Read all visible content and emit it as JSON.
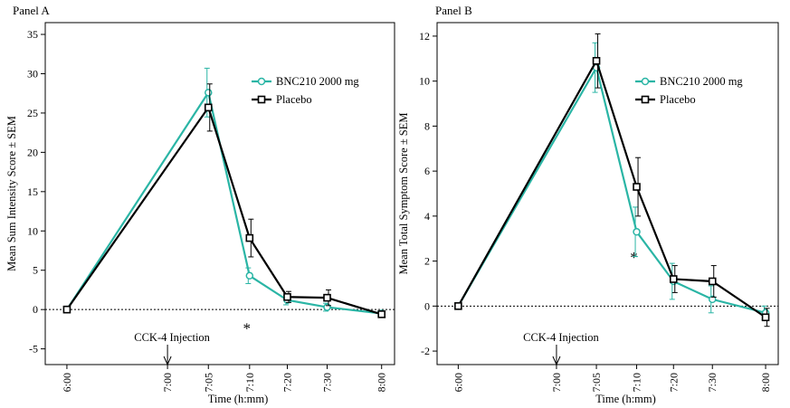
{
  "chart_data": [
    {
      "type": "line",
      "panel_label": "Panel A",
      "xlabel": "Time (h:mm)",
      "ylabel": "Mean Sum Intensity Score ± SEM",
      "ylim": [
        -7,
        36.5
      ],
      "yticks": [
        -5,
        0,
        5,
        10,
        15,
        20,
        25,
        30,
        35
      ],
      "xlim": [
        -4,
        299
      ],
      "x_ticks": [
        {
          "label": "6:00",
          "minutes": 0
        },
        {
          "label": "7:00",
          "minutes": 60
        },
        {
          "label": "7:05",
          "minutes": 65
        },
        {
          "label": "7:10",
          "minutes": 70
        },
        {
          "label": "7:20",
          "minutes": 80
        },
        {
          "label": "7:30",
          "minutes": 90
        },
        {
          "label": "8:00",
          "minutes": 120
        }
      ],
      "legend_position": "top-right",
      "series": [
        {
          "name": "BNC210 2000 mg",
          "color": "#2ab5a5",
          "marker": "circle",
          "points": [
            {
              "x": "6:00",
              "y": 0,
              "err": 0
            },
            {
              "x": "7:05",
              "y": 27.6,
              "err": 3.1
            },
            {
              "x": "7:10",
              "y": 4.3,
              "err": 1.0
            },
            {
              "x": "7:20",
              "y": 1.2,
              "err": 0.6
            },
            {
              "x": "7:30",
              "y": 0.3,
              "err": 0.5
            },
            {
              "x": "8:00",
              "y": -0.5,
              "err": 0.3
            }
          ]
        },
        {
          "name": "Placebo",
          "color": "#000000",
          "marker": "square",
          "points": [
            {
              "x": "6:00",
              "y": 0,
              "err": 0
            },
            {
              "x": "7:05",
              "y": 25.7,
              "err": 3.0
            },
            {
              "x": "7:10",
              "y": 9.1,
              "err": 2.4
            },
            {
              "x": "7:20",
              "y": 1.6,
              "err": 0.7
            },
            {
              "x": "7:30",
              "y": 1.5,
              "err": 1.0
            },
            {
              "x": "8:00",
              "y": -0.6,
              "err": 0.4
            }
          ]
        }
      ],
      "annotations": {
        "injection_label": "CCK-4 Injection",
        "injection_at": "7:00",
        "significance_mark": "*",
        "significance_at": "7:10",
        "significance_y": -2.0
      }
    },
    {
      "type": "line",
      "panel_label": "Panel B",
      "xlabel": "Time (h:mm)",
      "ylabel": "Mean Total Symptom Score ± SEM",
      "ylim": [
        -2.6,
        12.6
      ],
      "yticks": [
        -2,
        0,
        2,
        4,
        6,
        8,
        10,
        12
      ],
      "xlim": [
        -4,
        299
      ],
      "x_ticks": [
        {
          "label": "6:00",
          "minutes": 0
        },
        {
          "label": "7:00",
          "minutes": 60
        },
        {
          "label": "7:05",
          "minutes": 65
        },
        {
          "label": "7:10",
          "minutes": 70
        },
        {
          "label": "7:20",
          "minutes": 80
        },
        {
          "label": "7:30",
          "minutes": 90
        },
        {
          "label": "8:00",
          "minutes": 120
        }
      ],
      "legend_position": "top-right",
      "series": [
        {
          "name": "BNC210 2000 mg",
          "color": "#2ab5a5",
          "marker": "circle",
          "points": [
            {
              "x": "6:00",
              "y": 0,
              "err": 0
            },
            {
              "x": "7:05",
              "y": 10.6,
              "err": 1.1
            },
            {
              "x": "7:10",
              "y": 3.3,
              "err": 1.1
            },
            {
              "x": "7:20",
              "y": 1.1,
              "err": 0.8
            },
            {
              "x": "7:30",
              "y": 0.3,
              "err": 0.6
            },
            {
              "x": "8:00",
              "y": -0.3,
              "err": 0.3
            }
          ]
        },
        {
          "name": "Placebo",
          "color": "#000000",
          "marker": "square",
          "points": [
            {
              "x": "6:00",
              "y": 0,
              "err": 0
            },
            {
              "x": "7:05",
              "y": 10.9,
              "err": 1.2
            },
            {
              "x": "7:10",
              "y": 5.3,
              "err": 1.3
            },
            {
              "x": "7:20",
              "y": 1.2,
              "err": 0.6
            },
            {
              "x": "7:30",
              "y": 1.1,
              "err": 0.7
            },
            {
              "x": "8:00",
              "y": -0.5,
              "err": 0.4
            }
          ]
        }
      ],
      "annotations": {
        "injection_label": "CCK-4 Injection",
        "injection_at": "7:00",
        "significance_mark": "*",
        "significance_at": "7:10",
        "significance_y": 2.3
      }
    }
  ]
}
